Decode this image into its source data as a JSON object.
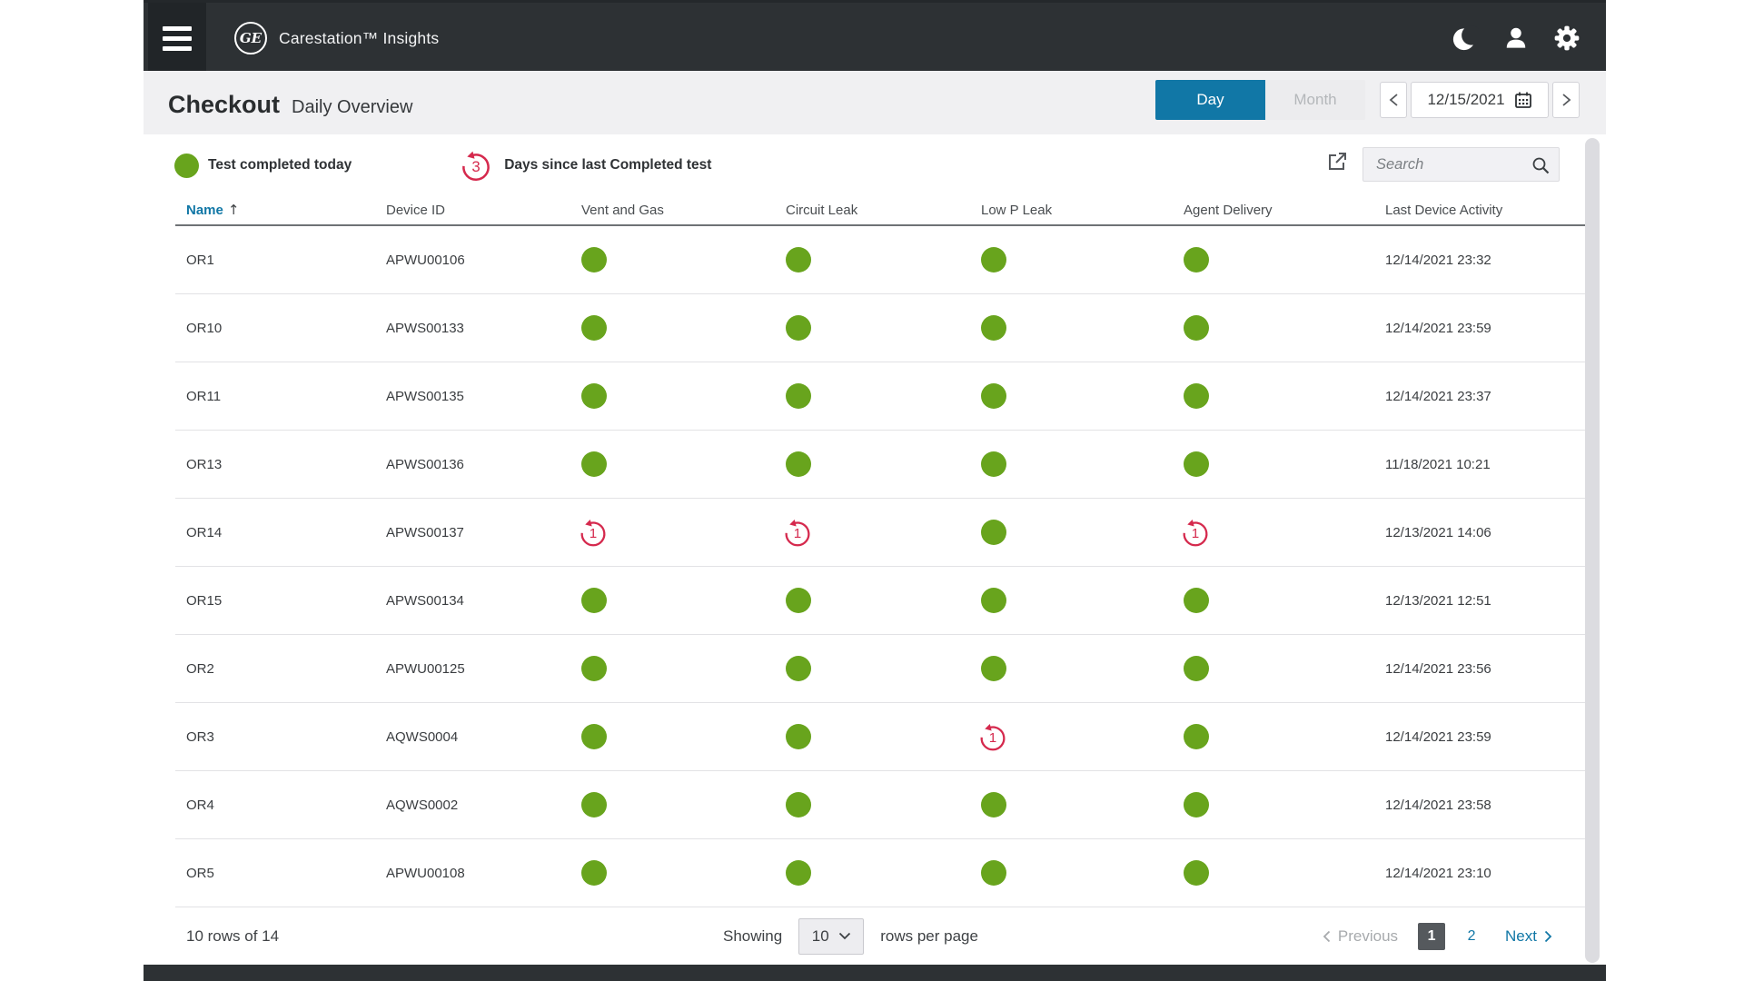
{
  "topbar": {
    "logo_text": "GE",
    "app_title": "Carestation™ Insights"
  },
  "page": {
    "title": "Checkout",
    "subtitle": "Daily Overview"
  },
  "view_toggle": {
    "day": "Day",
    "month": "Month",
    "selected": "Day"
  },
  "date_nav": {
    "date": "12/15/2021"
  },
  "legend": {
    "completed_label": "Test completed today",
    "overdue_count": "3",
    "overdue_label": "Days since last Completed test"
  },
  "search": {
    "placeholder": "Search"
  },
  "table": {
    "columns": [
      "Name",
      "Device ID",
      "Vent and Gas",
      "Circuit Leak",
      "Low P Leak",
      "Agent Delivery",
      "Last Device Activity"
    ],
    "sorted_by": "Name",
    "sort_direction": "ascending",
    "rows": [
      {
        "name": "OR1",
        "device_id": "APWU00106",
        "vent_and_gas": "ok",
        "circuit_leak": "ok",
        "low_p_leak": "ok",
        "agent_delivery": "ok",
        "last_device_activity": "12/14/2021 23:32"
      },
      {
        "name": "OR10",
        "device_id": "APWS00133",
        "vent_and_gas": "ok",
        "circuit_leak": "ok",
        "low_p_leak": "ok",
        "agent_delivery": "ok",
        "last_device_activity": "12/14/2021 23:59"
      },
      {
        "name": "OR11",
        "device_id": "APWS00135",
        "vent_and_gas": "ok",
        "circuit_leak": "ok",
        "low_p_leak": "ok",
        "agent_delivery": "ok",
        "last_device_activity": "12/14/2021 23:37"
      },
      {
        "name": "OR13",
        "device_id": "APWS00136",
        "vent_and_gas": "ok",
        "circuit_leak": "ok",
        "low_p_leak": "ok",
        "agent_delivery": "ok",
        "last_device_activity": "11/18/2021 10:21"
      },
      {
        "name": "OR14",
        "device_id": "APWS00137",
        "vent_and_gas": "1",
        "circuit_leak": "1",
        "low_p_leak": "ok",
        "agent_delivery": "1",
        "last_device_activity": "12/13/2021 14:06"
      },
      {
        "name": "OR15",
        "device_id": "APWS00134",
        "vent_and_gas": "ok",
        "circuit_leak": "ok",
        "low_p_leak": "ok",
        "agent_delivery": "ok",
        "last_device_activity": "12/13/2021 12:51"
      },
      {
        "name": "OR2",
        "device_id": "APWU00125",
        "vent_and_gas": "ok",
        "circuit_leak": "ok",
        "low_p_leak": "ok",
        "agent_delivery": "ok",
        "last_device_activity": "12/14/2021 23:56"
      },
      {
        "name": "OR3",
        "device_id": "AQWS0004",
        "vent_and_gas": "ok",
        "circuit_leak": "ok",
        "low_p_leak": "1",
        "agent_delivery": "ok",
        "last_device_activity": "12/14/2021 23:59"
      },
      {
        "name": "OR4",
        "device_id": "AQWS0002",
        "vent_and_gas": "ok",
        "circuit_leak": "ok",
        "low_p_leak": "ok",
        "agent_delivery": "ok",
        "last_device_activity": "12/14/2021 23:58"
      },
      {
        "name": "OR5",
        "device_id": "APWU00108",
        "vent_and_gas": "ok",
        "circuit_leak": "ok",
        "low_p_leak": "ok",
        "agent_delivery": "ok",
        "last_device_activity": "12/14/2021 23:10"
      }
    ]
  },
  "footer": {
    "rows_summary": "10 rows of 14",
    "showing_label": "Showing",
    "rows_per_page_value": "10",
    "rows_per_page_label": "rows per page",
    "pagination": {
      "previous_label": "Previous",
      "pages": [
        "1",
        "2"
      ],
      "current_page": "1",
      "next_label": "Next"
    }
  },
  "colors": {
    "accent_blue": "#1177a6",
    "status_green": "#68a41d",
    "status_red": "#d5294d",
    "topbar_bg": "#2d3134"
  }
}
